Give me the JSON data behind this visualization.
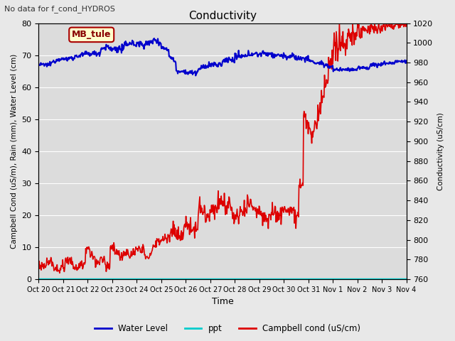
{
  "title": "Conductivity",
  "top_left_text": "No data for f_cond_HYDROS",
  "ylabel_left": "Campbell Cond (uS/m), Rain (mm), Water Level (cm)",
  "ylabel_right": "Conductivity (uS/cm)",
  "xlabel": "Time",
  "ylim_left": [
    0,
    80
  ],
  "ylim_right": [
    760,
    1020
  ],
  "fig_bg_color": "#e8e8e8",
  "plot_bg_color": "#dcdcdc",
  "annotation_box_text": "MB_tule",
  "annotation_box_facecolor": "#ffffcc",
  "annotation_box_edgecolor": "#aa0000",
  "x_tick_labels": [
    "Oct 20",
    "Oct 21",
    "Oct 22",
    "Oct 23",
    "Oct 24",
    "Oct 25",
    "Oct 26",
    "Oct 27",
    "Oct 28",
    "Oct 29",
    "Oct 30",
    "Oct 31",
    "Nov 1",
    "Nov 2",
    "Nov 3",
    "Nov 4"
  ],
  "water_level_color": "#0000cc",
  "ppt_color": "#00cccc",
  "campbell_cond_color": "#dd0000",
  "grid_color": "#ffffff",
  "legend_labels": [
    "Water Level",
    "ppt",
    "Campbell cond (uS/cm)"
  ],
  "legend_colors": [
    "#0000cc",
    "#00cccc",
    "#dd0000"
  ],
  "n_days": 15,
  "figsize": [
    6.4,
    4.8
  ],
  "dpi": 100
}
